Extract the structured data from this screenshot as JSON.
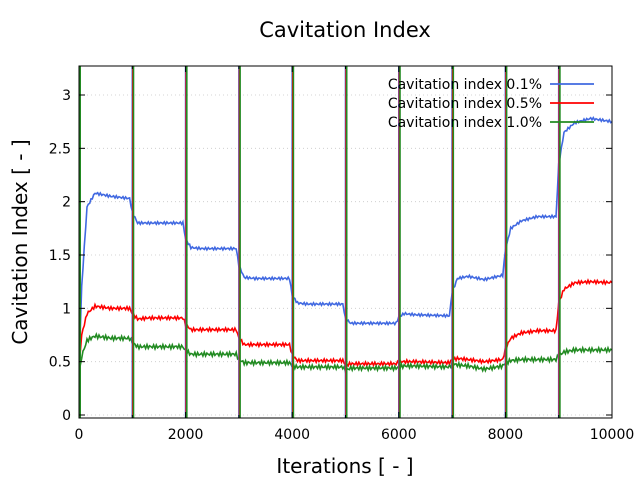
{
  "chart_data": {
    "type": "line",
    "title": "Cavitation Index",
    "xlabel": "Iterations [ - ]",
    "ylabel": "Cavitation Index [ - ]",
    "xlim": [
      0,
      10000
    ],
    "ylim": [
      0,
      3.27
    ],
    "xticks": [
      0,
      2000,
      4000,
      6000,
      8000,
      10000
    ],
    "xtick_labels": [
      "0",
      "2000",
      "4000",
      "6000",
      "8000",
      "10000"
    ],
    "yticks": [
      0,
      0.5,
      1,
      1.5,
      2,
      2.5,
      3
    ],
    "ytick_labels": [
      "0",
      "0.5",
      "1",
      "1.5",
      "2",
      "2.5",
      "3"
    ],
    "grid": true,
    "legend_position": "top-right",
    "restart_iterations": [
      0,
      1000,
      2000,
      3000,
      4000,
      5000,
      6000,
      7000,
      8000,
      9000
    ],
    "series": [
      {
        "name": "Cavitation index 0.1%",
        "color": "#4169e1",
        "plateaus": [
          2.03,
          1.8,
          1.56,
          1.28,
          1.04,
          0.86,
          0.94,
          1.31,
          1.86,
          2.76
        ],
        "x": [
          0,
          50,
          150,
          300,
          600,
          950,
          1000,
          1100,
          1300,
          1950,
          2000,
          2100,
          2300,
          2950,
          3000,
          3100,
          3300,
          3950,
          4000,
          4100,
          4300,
          4950,
          5000,
          5100,
          5300,
          5950,
          6000,
          6100,
          6300,
          6950,
          7000,
          7100,
          7300,
          7600,
          7950,
          8000,
          8100,
          8300,
          8600,
          8950,
          9000,
          9100,
          9300,
          9600,
          10000
        ],
        "y": [
          0.4,
          1.2,
          1.95,
          2.08,
          2.05,
          2.03,
          1.9,
          1.8,
          1.8,
          1.8,
          1.65,
          1.57,
          1.56,
          1.56,
          1.4,
          1.29,
          1.28,
          1.28,
          1.12,
          1.05,
          1.04,
          1.04,
          0.9,
          0.86,
          0.86,
          0.86,
          0.92,
          0.95,
          0.94,
          0.93,
          1.15,
          1.28,
          1.3,
          1.27,
          1.31,
          1.55,
          1.75,
          1.82,
          1.86,
          1.86,
          2.35,
          2.65,
          2.74,
          2.78,
          2.75
        ]
      },
      {
        "name": "Cavitation index 0.5%",
        "color": "#ff0000",
        "plateaus": [
          1.0,
          0.91,
          0.8,
          0.66,
          0.51,
          0.48,
          0.5,
          0.52,
          0.79,
          1.25
        ],
        "x": [
          0,
          50,
          150,
          300,
          600,
          950,
          1000,
          1100,
          1300,
          1950,
          2000,
          2100,
          2300,
          2950,
          3000,
          3100,
          3300,
          3950,
          4000,
          4100,
          4300,
          4950,
          5000,
          5100,
          5300,
          5950,
          6000,
          6100,
          6300,
          6950,
          7000,
          7100,
          7300,
          7600,
          7950,
          8000,
          8100,
          8300,
          8600,
          8950,
          9000,
          9100,
          9300,
          9600,
          10000
        ],
        "y": [
          0.45,
          0.75,
          0.95,
          1.02,
          1.0,
          1.0,
          0.95,
          0.9,
          0.91,
          0.91,
          0.85,
          0.8,
          0.8,
          0.8,
          0.72,
          0.66,
          0.66,
          0.66,
          0.56,
          0.51,
          0.51,
          0.51,
          0.47,
          0.48,
          0.48,
          0.48,
          0.5,
          0.5,
          0.5,
          0.49,
          0.52,
          0.53,
          0.52,
          0.5,
          0.52,
          0.62,
          0.72,
          0.77,
          0.79,
          0.79,
          1.05,
          1.18,
          1.24,
          1.25,
          1.24
        ]
      },
      {
        "name": "Cavitation index 1.0%",
        "color": "#228b22",
        "plateaus": [
          0.72,
          0.64,
          0.57,
          0.49,
          0.45,
          0.44,
          0.46,
          0.46,
          0.52,
          0.61
        ],
        "x": [
          0,
          50,
          150,
          300,
          600,
          950,
          1000,
          1100,
          1300,
          1950,
          2000,
          2100,
          2300,
          2950,
          3000,
          3100,
          3300,
          3950,
          4000,
          4100,
          4300,
          4950,
          5000,
          5100,
          5300,
          5950,
          6000,
          6100,
          6300,
          6950,
          7000,
          7100,
          7300,
          7600,
          7950,
          8000,
          8100,
          8300,
          8600,
          8950,
          9000,
          9100,
          9300,
          9600,
          10000
        ],
        "y": [
          0.35,
          0.55,
          0.7,
          0.74,
          0.72,
          0.72,
          0.68,
          0.64,
          0.64,
          0.64,
          0.6,
          0.57,
          0.57,
          0.57,
          0.52,
          0.49,
          0.49,
          0.49,
          0.46,
          0.45,
          0.45,
          0.45,
          0.42,
          0.44,
          0.44,
          0.44,
          0.45,
          0.46,
          0.46,
          0.45,
          0.48,
          0.47,
          0.46,
          0.43,
          0.46,
          0.49,
          0.51,
          0.52,
          0.52,
          0.52,
          0.56,
          0.59,
          0.61,
          0.61,
          0.61
        ]
      }
    ]
  }
}
